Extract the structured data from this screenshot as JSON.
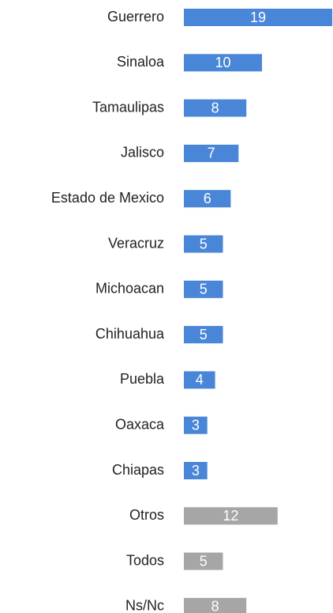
{
  "chart_data": {
    "type": "bar",
    "orientation": "horizontal",
    "categories": [
      "Guerrero",
      "Sinaloa",
      "Tamaulipas",
      "Jalisco",
      "Estado de Mexico",
      "Veracruz",
      "Michoacan",
      "Chihuahua",
      "Puebla",
      "Oaxaca",
      "Chiapas",
      "Otros",
      "Todos",
      "Ns/Nc"
    ],
    "values": [
      19,
      10,
      8,
      7,
      6,
      5,
      5,
      5,
      4,
      3,
      3,
      12,
      5,
      8
    ],
    "colors": [
      "#4a86d8",
      "#4a86d8",
      "#4a86d8",
      "#4a86d8",
      "#4a86d8",
      "#4a86d8",
      "#4a86d8",
      "#4a86d8",
      "#4a86d8",
      "#4a86d8",
      "#4a86d8",
      "#a6a6a6",
      "#a6a6a6",
      "#a6a6a6"
    ]
  }
}
